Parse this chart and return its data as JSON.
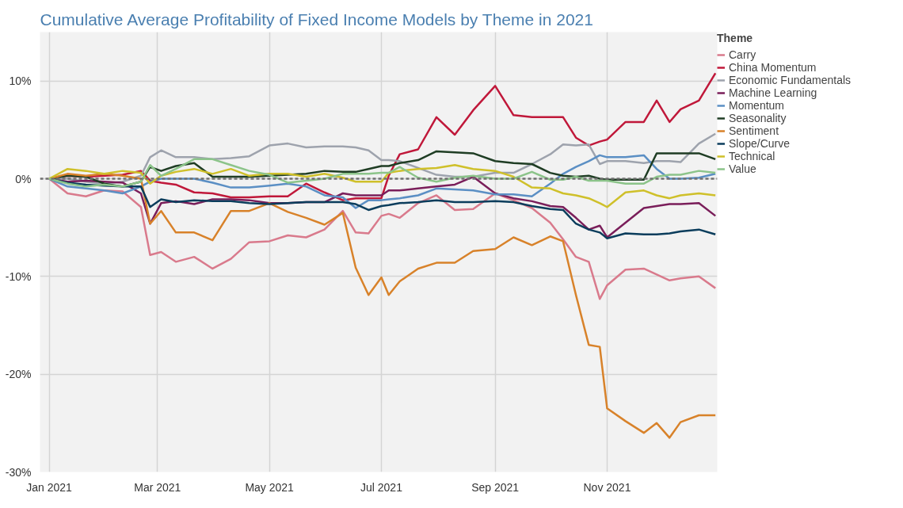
{
  "chart_data": {
    "type": "line",
    "title": "Cumulative Average Profitability of Fixed Income Models by Theme in 2021",
    "legend_title": "Theme",
    "legend": "right",
    "grid": true,
    "line_style": "solid",
    "marker": "none",
    "x": [
      "2021-01-01",
      "2021-01-11",
      "2021-01-21",
      "2021-01-31",
      "2021-02-10",
      "2021-02-20",
      "2021-02-25",
      "2021-03-03",
      "2021-03-11",
      "2021-03-21",
      "2021-03-31",
      "2021-04-10",
      "2021-04-20",
      "2021-05-01",
      "2021-05-11",
      "2021-05-21",
      "2021-05-31",
      "2021-06-10",
      "2021-06-17",
      "2021-06-24",
      "2021-07-01",
      "2021-07-05",
      "2021-07-11",
      "2021-07-21",
      "2021-07-31",
      "2021-08-10",
      "2021-08-20",
      "2021-09-01",
      "2021-09-11",
      "2021-09-21",
      "2021-10-01",
      "2021-10-08",
      "2021-10-15",
      "2021-10-22",
      "2021-10-28",
      "2021-11-01",
      "2021-11-11",
      "2021-11-21",
      "2021-11-28",
      "2021-12-05",
      "2021-12-11",
      "2021-12-21",
      "2021-12-30"
    ],
    "xlim": [
      "2020-12-27",
      "2021-12-31"
    ],
    "xticks": [
      {
        "value": "2021-01-01",
        "label": "Jan 2021"
      },
      {
        "value": "2021-03-01",
        "label": "Mar 2021"
      },
      {
        "value": "2021-05-01",
        "label": "May 2021"
      },
      {
        "value": "2021-07-01",
        "label": "Jul 2021"
      },
      {
        "value": "2021-09-01",
        "label": "Sep 2021"
      },
      {
        "value": "2021-11-01",
        "label": "Nov 2021"
      }
    ],
    "ylim": [
      -30,
      15
    ],
    "yticks": [
      {
        "value": -30,
        "label": "-30%"
      },
      {
        "value": -20,
        "label": "-20%"
      },
      {
        "value": -10,
        "label": "-10%"
      },
      {
        "value": 0,
        "label": "0%"
      },
      {
        "value": 10,
        "label": "10%"
      }
    ],
    "ref_lines": [
      {
        "axis": "y",
        "value": 0,
        "color": "#707070",
        "line_style": "dashed"
      }
    ],
    "series": [
      {
        "name": "Carry",
        "color": "#d97a8c",
        "values": [
          0,
          -1.5,
          -1.8,
          -1.2,
          -1.3,
          -2.9,
          -7.8,
          -7.5,
          -8.5,
          -8.0,
          -9.2,
          -8.2,
          -6.5,
          -6.4,
          -5.8,
          -6.0,
          -5.2,
          -3.3,
          -5.5,
          -5.6,
          -3.8,
          -3.6,
          -4.0,
          -2.5,
          -1.7,
          -3.2,
          -3.1,
          -1.5,
          -2.2,
          -3.0,
          -4.5,
          -6.2,
          -8.0,
          -8.5,
          -12.3,
          -10.9,
          -9.3,
          -9.2,
          -9.8,
          -10.4,
          -10.2,
          -10.0,
          -11.2
        ]
      },
      {
        "name": "China Momentum",
        "color": "#c0183a",
        "values": [
          0,
          0.3,
          0.2,
          0.3,
          0.4,
          0.8,
          -0.2,
          -0.4,
          -0.6,
          -1.4,
          -1.5,
          -1.9,
          -1.9,
          -1.8,
          -1.8,
          -0.5,
          -1.4,
          -2.2,
          -2.0,
          -2.0,
          -2.0,
          0.3,
          2.5,
          3.0,
          6.3,
          4.5,
          7.0,
          9.5,
          6.5,
          6.3,
          6.3,
          6.3,
          4.2,
          3.4,
          3.8,
          4.0,
          5.8,
          5.8,
          8.0,
          5.8,
          7.1,
          8.0,
          10.8
        ]
      },
      {
        "name": "Economic Fundamentals",
        "color": "#9ea3ad",
        "values": [
          0,
          0,
          -0.3,
          -0.5,
          -0.3,
          0.3,
          2.2,
          2.9,
          2.2,
          2.2,
          2.0,
          2.1,
          2.3,
          3.4,
          3.6,
          3.2,
          3.3,
          3.3,
          3.2,
          2.9,
          1.9,
          1.9,
          1.8,
          1.1,
          0.4,
          0.2,
          0.2,
          0.6,
          0.6,
          1.5,
          2.5,
          3.5,
          3.4,
          3.5,
          1.5,
          1.8,
          1.8,
          1.6,
          1.8,
          1.8,
          1.7,
          3.6,
          4.6
        ]
      },
      {
        "name": "Machine Learning",
        "color": "#7a1e5a",
        "values": [
          0,
          -0.3,
          -0.2,
          -0.3,
          -0.4,
          -1.5,
          -4.6,
          -2.5,
          -2.3,
          -2.6,
          -2.1,
          -2.1,
          -2.2,
          -2.5,
          -2.5,
          -2.4,
          -2.4,
          -1.5,
          -1.7,
          -1.7,
          -1.7,
          -1.2,
          -1.2,
          -1.0,
          -0.8,
          -0.6,
          0.2,
          -1.5,
          -2.0,
          -2.3,
          -2.8,
          -2.9,
          -4.0,
          -5.2,
          -4.8,
          -6.0,
          -4.5,
          -3.0,
          -2.8,
          -2.6,
          -2.6,
          -2.5,
          -3.8
        ]
      },
      {
        "name": "Momentum",
        "color": "#5b8fc4",
        "values": [
          0,
          -0.8,
          -1.0,
          -1.2,
          -1.5,
          -0.8,
          -0.3,
          0,
          0,
          0,
          -0.4,
          -0.9,
          -0.9,
          -0.7,
          -0.5,
          -0.8,
          -1.7,
          -1.9,
          -3.0,
          -2.2,
          -2.2,
          -2.1,
          -2.0,
          -1.7,
          -1.0,
          -1.1,
          -1.2,
          -1.6,
          -1.6,
          -1.8,
          -0.5,
          0.5,
          1.2,
          1.8,
          2.4,
          2.2,
          2.2,
          2.4,
          1.0,
          0,
          0,
          0.1,
          0.5
        ]
      },
      {
        "name": "Seasonality",
        "color": "#1f3d24",
        "values": [
          0,
          0.3,
          0.2,
          -0.5,
          -0.8,
          -0.3,
          1.2,
          0.8,
          1.3,
          1.6,
          0.2,
          0.2,
          0.2,
          0.3,
          0.4,
          0.5,
          0.8,
          0.7,
          0.7,
          1.0,
          1.3,
          1.3,
          1.6,
          1.9,
          2.8,
          2.7,
          2.6,
          1.8,
          1.6,
          1.5,
          0.6,
          0.3,
          0.2,
          0.3,
          0,
          -0.1,
          -0.1,
          -0.1,
          2.6,
          2.6,
          2.6,
          2.6,
          2.0
        ]
      },
      {
        "name": "Sentiment",
        "color": "#d8822a",
        "values": [
          0,
          0.5,
          0.3,
          0.5,
          0.3,
          0,
          -4.6,
          -3.3,
          -5.5,
          -5.5,
          -6.3,
          -3.3,
          -3.3,
          -2.5,
          -3.4,
          -4.0,
          -4.7,
          -3.5,
          -9.1,
          -11.9,
          -10.1,
          -11.9,
          -10.5,
          -9.2,
          -8.6,
          -8.6,
          -7.4,
          -7.2,
          -6.0,
          -6.8,
          -5.9,
          -6.4,
          -11.9,
          -17.0,
          -17.2,
          -23.5,
          -24.8,
          -26.0,
          -25.0,
          -26.5,
          -24.9,
          -24.2,
          -24.2
        ]
      },
      {
        "name": "Slope/Curve",
        "color": "#0b3d5c",
        "values": [
          0,
          -0.4,
          -0.6,
          -0.7,
          -0.8,
          -0.8,
          -2.9,
          -2.1,
          -2.4,
          -2.2,
          -2.3,
          -2.3,
          -2.5,
          -2.6,
          -2.5,
          -2.4,
          -2.4,
          -2.4,
          -2.6,
          -3.2,
          -2.8,
          -2.7,
          -2.5,
          -2.4,
          -2.2,
          -2.4,
          -2.4,
          -2.3,
          -2.4,
          -2.8,
          -3.1,
          -3.2,
          -4.6,
          -5.2,
          -5.5,
          -6.1,
          -5.6,
          -5.7,
          -5.7,
          -5.6,
          -5.4,
          -5.2,
          -5.7
        ]
      },
      {
        "name": "Technical",
        "color": "#cfc02a",
        "values": [
          0,
          1.0,
          0.8,
          0.5,
          0.8,
          0.6,
          -0.5,
          0.3,
          0.7,
          1.0,
          0.5,
          1.0,
          0.3,
          0.5,
          0.5,
          0.2,
          0.5,
          0.1,
          -0.3,
          -0.3,
          -0.3,
          0.6,
          0.8,
          1.0,
          1.1,
          1.4,
          1.0,
          0.8,
          0.2,
          -0.9,
          -1.0,
          -1.5,
          -1.7,
          -2.0,
          -2.5,
          -2.9,
          -1.4,
          -1.2,
          -1.7,
          -2.0,
          -1.7,
          -1.5,
          -1.7
        ]
      },
      {
        "name": "Value",
        "color": "#8cc48a",
        "values": [
          0,
          -0.5,
          -0.8,
          -0.6,
          -0.8,
          -0.3,
          1.4,
          0.3,
          1.0,
          2.0,
          2.0,
          1.4,
          0.8,
          0.4,
          -0.4,
          -0.2,
          0,
          0.5,
          0.5,
          0.5,
          0.6,
          0.6,
          1.2,
          0.1,
          -0.3,
          0.1,
          0.3,
          0,
          0,
          0.7,
          -0.1,
          -0.1,
          0.2,
          -0.2,
          -0.2,
          -0.2,
          -0.5,
          -0.5,
          0.2,
          0.4,
          0.4,
          0.8,
          0.6
        ]
      }
    ]
  }
}
